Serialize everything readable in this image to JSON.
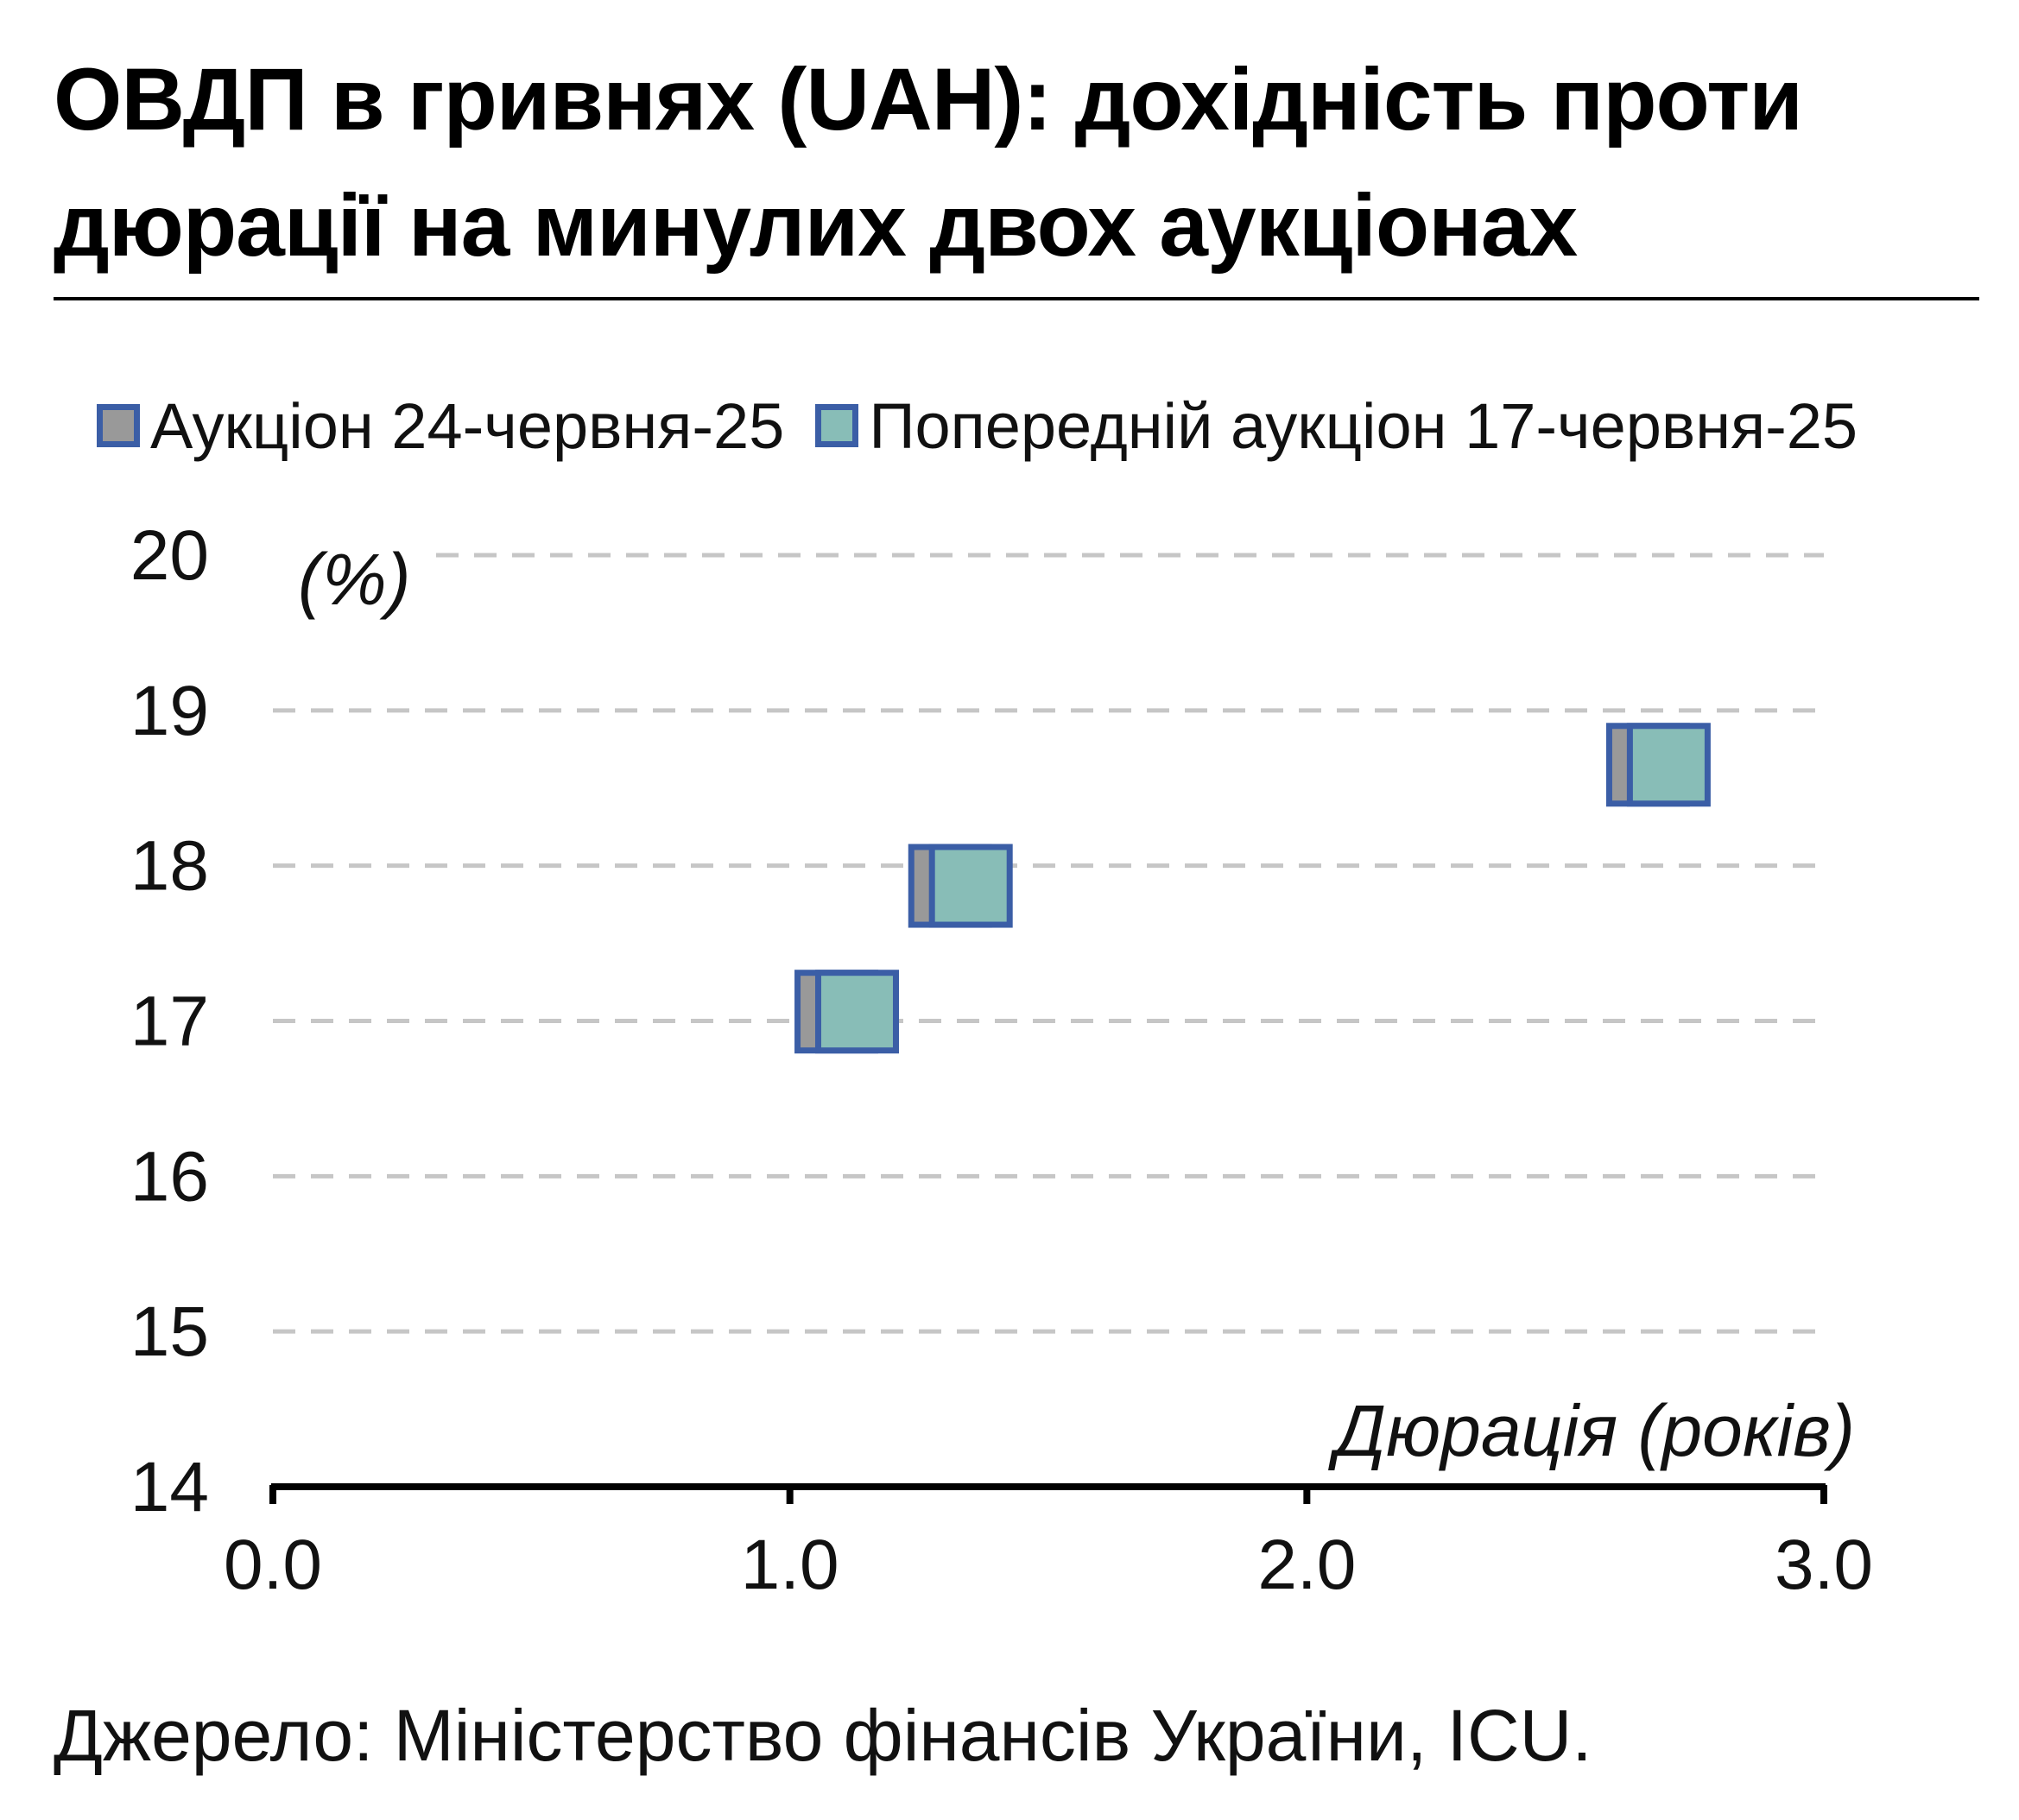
{
  "title": "ОВДП в гривнях (UAH): дохідність проти дюрації на минулих двох аукціонах",
  "source": "Джерело: Міністерство фінансів України, ICU.",
  "chart_data": {
    "type": "scatter",
    "xlabel": "Дюрація (років)",
    "ylabel": "(%)",
    "xlim": [
      0,
      3
    ],
    "ylim": [
      14,
      20
    ],
    "x_ticks": [
      "0.0",
      "1.0",
      "2.0",
      "3.0"
    ],
    "y_ticks": [
      "14",
      "15",
      "16",
      "17",
      "18",
      "19",
      "20"
    ],
    "grid": "horizontal dashed",
    "legend_position": "top-left",
    "series": [
      {
        "name": "Аукціон 24-червня-25",
        "color": "#999999",
        "edge_color": "#3b5ea6",
        "points": [
          {
            "x": 1.09,
            "y": 17.06
          },
          {
            "x": 1.31,
            "y": 17.87
          },
          {
            "x": 2.66,
            "y": 18.65
          }
        ]
      },
      {
        "name": "Попередній аукціон 17-червня-25",
        "color": "#88bdb7",
        "edge_color": "#3b5ea6",
        "points": [
          {
            "x": 1.13,
            "y": 17.06
          },
          {
            "x": 1.35,
            "y": 17.87
          },
          {
            "x": 2.7,
            "y": 18.65
          }
        ]
      }
    ]
  }
}
